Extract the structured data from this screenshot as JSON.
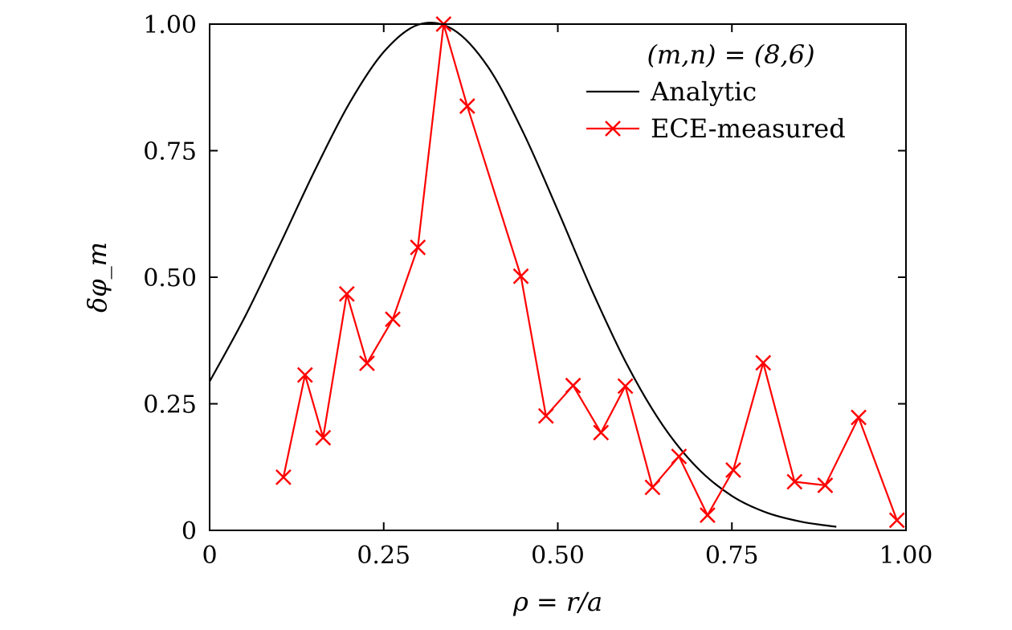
{
  "chart_data": {
    "type": "line",
    "title": "",
    "xlabel": "ρ = r/a",
    "ylabel": "δφ_m",
    "xlim": [
      0,
      1.0
    ],
    "ylim": [
      0,
      1.0
    ],
    "xticks": [
      0,
      0.25,
      0.5,
      0.75,
      1.0
    ],
    "xtick_labels": [
      "0",
      "0.25",
      "0.50",
      "0.75",
      "1.00"
    ],
    "yticks": [
      0,
      0.25,
      0.5,
      0.75,
      1.0
    ],
    "ytick_labels": [
      "0",
      "0.25",
      "0.50",
      "0.75",
      "1.00"
    ],
    "grid": false,
    "legend": {
      "placement": "top-right",
      "header": "(m,n) = (8,6)"
    },
    "series": [
      {
        "name": "Analytic",
        "color": "#000000",
        "marker": "none",
        "x": [
          0.0,
          0.05,
          0.1,
          0.15,
          0.2,
          0.25,
          0.3,
          0.35,
          0.4,
          0.45,
          0.5,
          0.55,
          0.6,
          0.65,
          0.7,
          0.75,
          0.8,
          0.85,
          0.9
        ],
        "values": [
          0.294,
          0.42,
          0.562,
          0.708,
          0.842,
          0.945,
          0.999,
          0.989,
          0.915,
          0.787,
          0.632,
          0.471,
          0.326,
          0.209,
          0.124,
          0.068,
          0.035,
          0.017,
          0.007
        ]
      },
      {
        "name": "ECE-measured",
        "color": "#ff0000",
        "marker": "x",
        "x": [
          0.106,
          0.137,
          0.163,
          0.197,
          0.226,
          0.263,
          0.299,
          0.336,
          0.37,
          0.447,
          0.483,
          0.522,
          0.562,
          0.597,
          0.636,
          0.674,
          0.715,
          0.752,
          0.795,
          0.84,
          0.884,
          0.932,
          0.987
        ],
        "values": [
          0.105,
          0.307,
          0.183,
          0.467,
          0.33,
          0.417,
          0.559,
          1.0,
          0.838,
          0.502,
          0.226,
          0.286,
          0.193,
          0.285,
          0.085,
          0.146,
          0.03,
          0.119,
          0.331,
          0.096,
          0.089,
          0.223,
          0.02
        ]
      }
    ]
  }
}
